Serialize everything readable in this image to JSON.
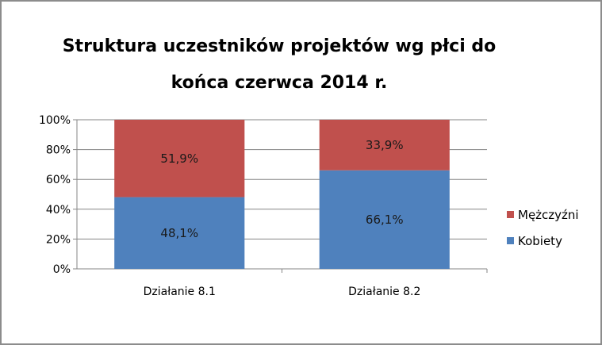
{
  "chart_data": {
    "type": "bar",
    "stacked": true,
    "percent": true,
    "title": "Struktura uczestników projektów wg płci do końca czerwca 2014 r.",
    "categories": [
      "Działanie 8.1",
      "Działanie 8.2"
    ],
    "series": [
      {
        "name": "Kobiety",
        "values": [
          48.1,
          66.1
        ],
        "labels": [
          "48,1%",
          "66,1%"
        ],
        "color": "#4f81bd"
      },
      {
        "name": "Mężczyźni",
        "values": [
          51.9,
          33.9
        ],
        "labels": [
          "51,9%",
          "33,9%"
        ],
        "color": "#c0504d"
      }
    ],
    "ylim": [
      0,
      100
    ],
    "yticks": [
      "0%",
      "20%",
      "40%",
      "60%",
      "80%",
      "100%"
    ],
    "grid": true,
    "legend_position": "right"
  }
}
